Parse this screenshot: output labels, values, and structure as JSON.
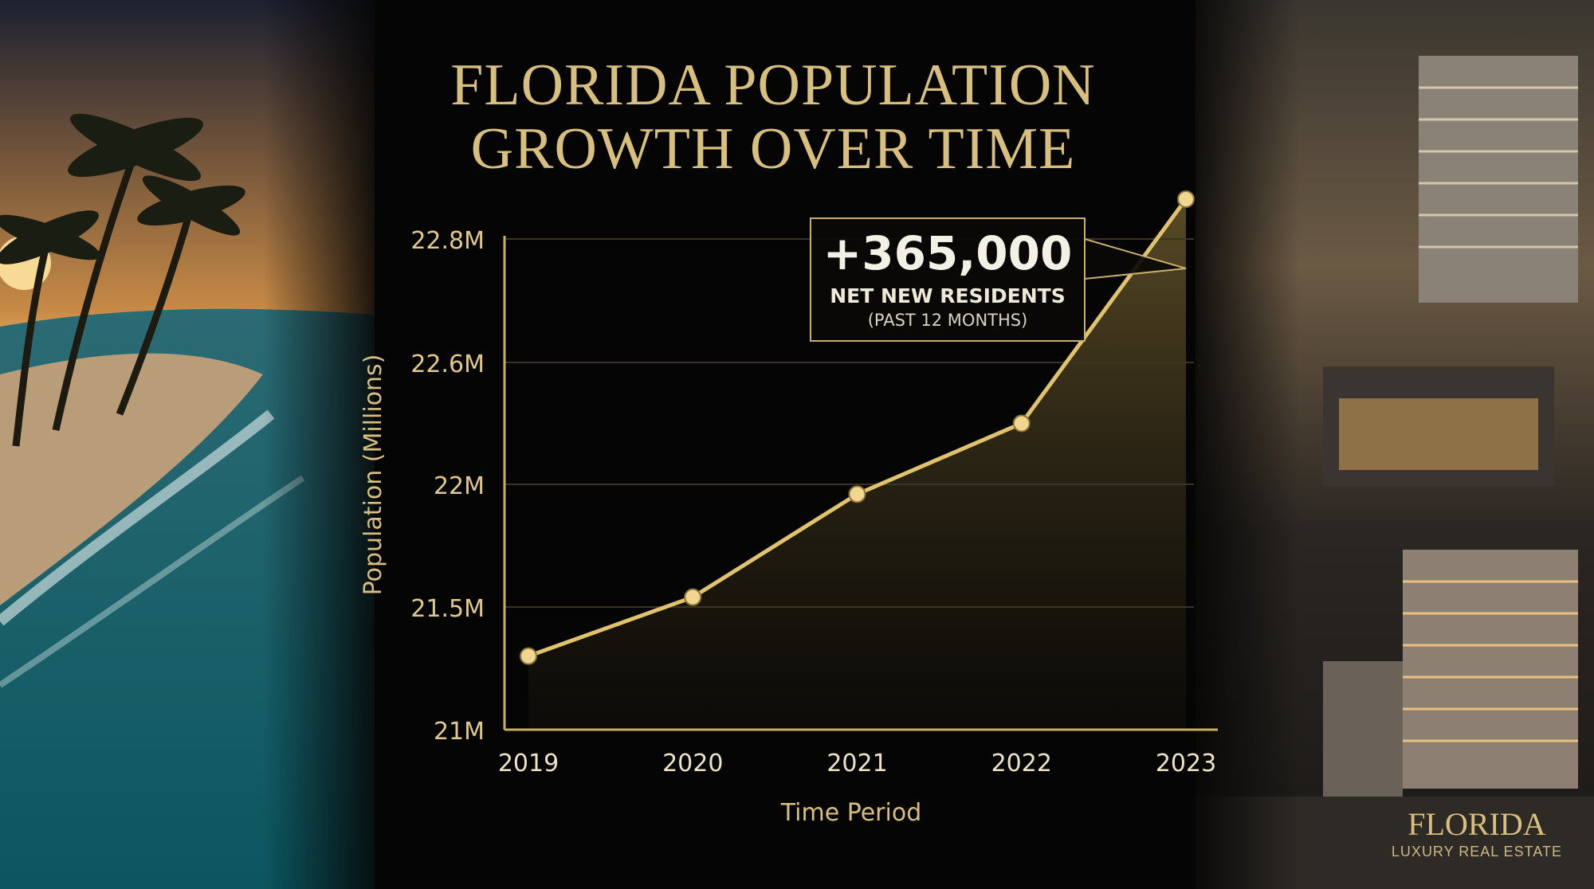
{
  "title": {
    "line1": "FLORIDA POPULATION",
    "line2": "GROWTH OVER TIME"
  },
  "callout": {
    "value": "+365,000",
    "line1": "NET NEW RESIDENTS",
    "line2": "(PAST 12 MONTHS)"
  },
  "brand": {
    "name": "FLORIDA",
    "tagline": "LUXURY REAL ESTATE"
  },
  "colors": {
    "accent_gold": "#d8bf7e",
    "line_gold": "#e2c36d",
    "background": "#050505"
  },
  "chart_data": {
    "type": "line",
    "xlabel": "Time Period",
    "ylabel": "Population (Millions)",
    "categories": [
      "2019",
      "2020",
      "2021",
      "2022",
      "2023"
    ],
    "y_ticks": [
      "21M",
      "21.5M",
      "22M",
      "22.6M",
      "22.8M"
    ],
    "values": [
      21.3,
      21.54,
      21.96,
      22.3,
      22.89
    ],
    "ylim": [
      21,
      23
    ],
    "grid": true,
    "area_fill": true
  }
}
